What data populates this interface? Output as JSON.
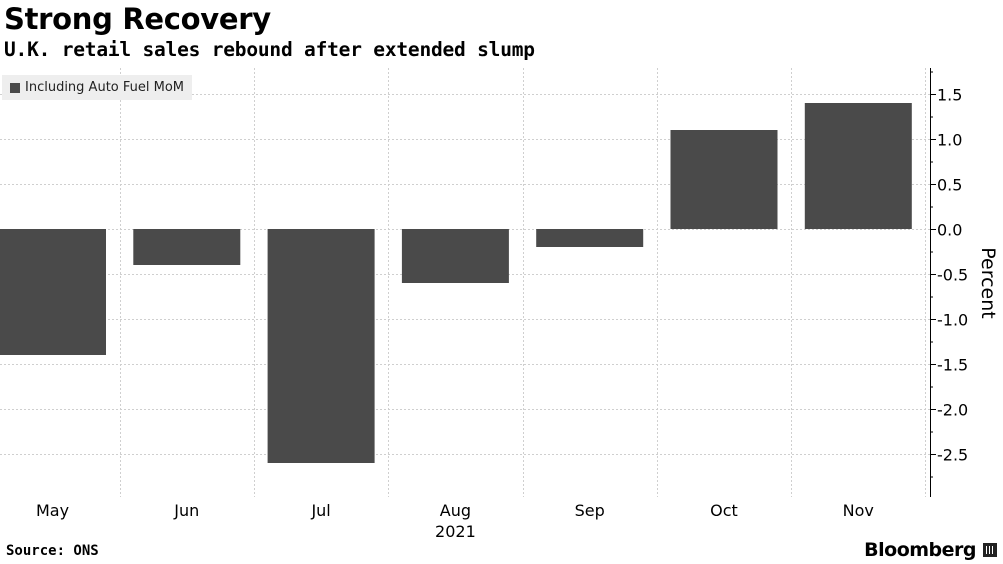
{
  "chart_data": {
    "type": "bar",
    "title": "Strong Recovery",
    "subtitle": "U.K. retail sales rebound after extended slump",
    "categories": [
      "May",
      "Jun",
      "Jul",
      "Aug",
      "Sep",
      "Oct",
      "Nov"
    ],
    "year_label": "2021",
    "series": [
      {
        "name": "Including Auto Fuel MoM",
        "values": [
          -1.4,
          -0.4,
          -2.6,
          -0.6,
          -0.2,
          1.1,
          1.4
        ]
      }
    ],
    "ylabel": "Percent",
    "xlabel": "",
    "ylim": [
      -3.0,
      1.8
    ],
    "yticks": [
      1.5,
      1.0,
      0.5,
      0.0,
      -0.5,
      -1.0,
      -1.5,
      -2.0,
      -2.5
    ],
    "ytick_labels": [
      "1.5",
      "1.0",
      "0.5",
      "0.0",
      "-0.5",
      "-1.0",
      "-1.5",
      "-2.0",
      "-2.5"
    ],
    "grid": true,
    "legend_position": "top-left",
    "bar_color": "#4a4a4a"
  },
  "footer": {
    "source": "Source: ONS",
    "brand": "Bloomberg"
  }
}
